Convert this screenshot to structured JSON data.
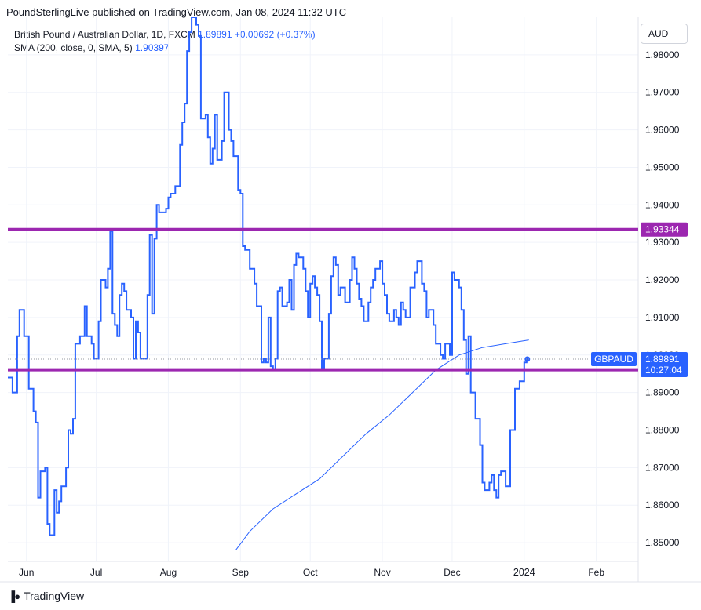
{
  "header": {
    "publisher": "PoundSterlingLive published on TradingView.com, Jan 08, 2024 11:32 UTC"
  },
  "legend": {
    "symbol": "British Pound / Australian Dollar, 1D, FXCM",
    "last_value": "1.89891",
    "change": "+0.00692 (+0.37%)",
    "sma_label": "SMA (200, close, 0, SMA, 5)",
    "sma_value": "1.90397"
  },
  "currency_button": "AUD",
  "footer": {
    "brand": "TradingView"
  },
  "colors": {
    "price_line": "#2962ff",
    "sma_line": "#2962ff",
    "level_line": "#9c27b0",
    "grid": "#f0f3fa",
    "axis_text": "#131722"
  },
  "chart_data": {
    "type": "line",
    "ylim": [
      1.845,
      1.99
    ],
    "y_ticks": [
      "1.85000",
      "1.86000",
      "1.87000",
      "1.88000",
      "1.89000",
      "1.90000",
      "1.91000",
      "1.92000",
      "1.93000",
      "1.94000",
      "1.95000",
      "1.96000",
      "1.97000",
      "1.98000"
    ],
    "x_ticks": [
      {
        "label": "Jun",
        "date": "2023-06-01"
      },
      {
        "label": "Jul",
        "date": "2023-07-01"
      },
      {
        "label": "Aug",
        "date": "2023-08-01"
      },
      {
        "label": "Sep",
        "date": "2023-09-01"
      },
      {
        "label": "Oct",
        "date": "2023-10-01"
      },
      {
        "label": "Nov",
        "date": "2023-11-01"
      },
      {
        "label": "Dec",
        "date": "2023-12-01"
      },
      {
        "label": "2024",
        "date": "2024-01-01"
      },
      {
        "label": "Feb",
        "date": "2024-02-01"
      }
    ],
    "x_range": [
      "2023-05-24",
      "2024-02-19"
    ],
    "series": [
      {
        "style": "step",
        "points": [
          [
            "2023-05-24",
            1.894
          ],
          [
            "2023-05-26",
            1.89
          ],
          [
            "2023-05-28",
            1.905
          ],
          [
            "2023-05-29",
            1.912
          ],
          [
            "2023-05-31",
            1.905
          ],
          [
            "2023-06-02",
            1.891
          ],
          [
            "2023-06-04",
            1.885
          ],
          [
            "2023-06-05",
            1.882
          ],
          [
            "2023-06-06",
            1.862
          ],
          [
            "2023-06-07",
            1.869
          ],
          [
            "2023-06-09",
            1.87
          ],
          [
            "2023-06-10",
            1.855
          ],
          [
            "2023-06-11",
            1.852
          ],
          [
            "2023-06-13",
            1.864
          ],
          [
            "2023-06-14",
            1.858
          ],
          [
            "2023-06-15",
            1.861
          ],
          [
            "2023-06-16",
            1.865
          ],
          [
            "2023-06-18",
            1.87
          ],
          [
            "2023-06-19",
            1.88
          ],
          [
            "2023-06-20",
            1.879
          ],
          [
            "2023-06-21",
            1.883
          ],
          [
            "2023-06-22",
            1.903
          ],
          [
            "2023-06-24",
            1.905
          ],
          [
            "2023-06-26",
            1.913
          ],
          [
            "2023-06-27",
            1.905
          ],
          [
            "2023-06-29",
            1.903
          ],
          [
            "2023-06-30",
            1.899
          ],
          [
            "2023-07-02",
            1.909
          ],
          [
            "2023-07-03",
            1.92
          ],
          [
            "2023-07-05",
            1.918
          ],
          [
            "2023-07-06",
            1.923
          ],
          [
            "2023-07-07",
            1.933
          ],
          [
            "2023-07-08",
            1.911
          ],
          [
            "2023-07-09",
            1.908
          ],
          [
            "2023-07-10",
            1.905
          ],
          [
            "2023-07-11",
            1.916
          ],
          [
            "2023-07-12",
            1.919
          ],
          [
            "2023-07-13",
            1.917
          ],
          [
            "2023-07-14",
            1.912
          ],
          [
            "2023-07-16",
            1.91
          ],
          [
            "2023-07-17",
            1.899
          ],
          [
            "2023-07-18",
            1.909
          ],
          [
            "2023-07-19",
            1.906
          ],
          [
            "2023-07-20",
            1.899
          ],
          [
            "2023-07-23",
            1.916
          ],
          [
            "2023-07-24",
            1.932
          ],
          [
            "2023-07-25",
            1.911
          ],
          [
            "2023-07-26",
            1.931
          ],
          [
            "2023-07-27",
            1.94
          ],
          [
            "2023-07-28",
            1.938
          ],
          [
            "2023-07-31",
            1.939
          ],
          [
            "2023-08-01",
            1.942
          ],
          [
            "2023-08-02",
            1.943
          ],
          [
            "2023-08-04",
            1.945
          ],
          [
            "2023-08-06",
            1.956
          ],
          [
            "2023-08-07",
            1.962
          ],
          [
            "2023-08-08",
            1.967
          ],
          [
            "2023-08-09",
            1.981
          ],
          [
            "2023-08-10",
            1.986
          ],
          [
            "2023-08-11",
            1.99
          ],
          [
            "2023-08-13",
            1.988
          ],
          [
            "2023-08-14",
            1.985
          ],
          [
            "2023-08-15",
            1.963
          ],
          [
            "2023-08-17",
            1.964
          ],
          [
            "2023-08-18",
            1.958
          ],
          [
            "2023-08-19",
            1.951
          ],
          [
            "2023-08-20",
            1.955
          ],
          [
            "2023-08-21",
            1.964
          ],
          [
            "2023-08-22",
            1.952
          ],
          [
            "2023-08-24",
            1.957
          ],
          [
            "2023-08-25",
            1.97
          ],
          [
            "2023-08-27",
            1.96
          ],
          [
            "2023-08-28",
            1.957
          ],
          [
            "2023-08-29",
            1.953
          ],
          [
            "2023-08-31",
            1.944
          ],
          [
            "2023-09-01",
            1.943
          ],
          [
            "2023-09-02",
            1.929
          ],
          [
            "2023-09-03",
            1.928
          ],
          [
            "2023-09-05",
            1.923
          ],
          [
            "2023-09-07",
            1.919
          ],
          [
            "2023-09-08",
            1.913
          ],
          [
            "2023-09-10",
            1.898
          ],
          [
            "2023-09-11",
            1.899
          ],
          [
            "2023-09-12",
            1.898
          ],
          [
            "2023-09-13",
            1.91
          ],
          [
            "2023-09-14",
            1.897
          ],
          [
            "2023-09-15",
            1.896
          ],
          [
            "2023-09-16",
            1.899
          ],
          [
            "2023-09-17",
            1.917
          ],
          [
            "2023-09-18",
            1.918
          ],
          [
            "2023-09-19",
            1.913
          ],
          [
            "2023-09-21",
            1.914
          ],
          [
            "2023-09-22",
            1.92
          ],
          [
            "2023-09-23",
            1.912
          ],
          [
            "2023-09-24",
            1.924
          ],
          [
            "2023-09-25",
            1.927
          ],
          [
            "2023-09-26",
            1.926
          ],
          [
            "2023-09-28",
            1.923
          ],
          [
            "2023-09-29",
            1.917
          ],
          [
            "2023-09-30",
            1.91
          ],
          [
            "2023-10-01",
            1.919
          ],
          [
            "2023-10-02",
            1.921
          ],
          [
            "2023-10-03",
            1.918
          ],
          [
            "2023-10-04",
            1.916
          ],
          [
            "2023-10-05",
            1.909
          ],
          [
            "2023-10-06",
            1.896
          ],
          [
            "2023-10-07",
            1.899
          ],
          [
            "2023-10-09",
            1.911
          ],
          [
            "2023-10-10",
            1.921
          ],
          [
            "2023-10-11",
            1.926
          ],
          [
            "2023-10-12",
            1.924
          ],
          [
            "2023-10-13",
            1.916
          ],
          [
            "2023-10-14",
            1.918
          ],
          [
            "2023-10-16",
            1.914
          ],
          [
            "2023-10-18",
            1.92
          ],
          [
            "2023-10-19",
            1.926
          ],
          [
            "2023-10-20",
            1.923
          ],
          [
            "2023-10-21",
            1.919
          ],
          [
            "2023-10-22",
            1.915
          ],
          [
            "2023-10-23",
            1.913
          ],
          [
            "2023-10-24",
            1.909
          ],
          [
            "2023-10-26",
            1.914
          ],
          [
            "2023-10-27",
            1.918
          ],
          [
            "2023-10-28",
            1.92
          ],
          [
            "2023-10-29",
            1.923
          ],
          [
            "2023-10-31",
            1.925
          ],
          [
            "2023-11-01",
            1.919
          ],
          [
            "2023-11-02",
            1.916
          ],
          [
            "2023-11-03",
            1.911
          ],
          [
            "2023-11-04",
            1.909
          ],
          [
            "2023-11-06",
            1.912
          ],
          [
            "2023-11-07",
            1.91
          ],
          [
            "2023-11-08",
            1.908
          ],
          [
            "2023-11-09",
            1.914
          ],
          [
            "2023-11-10",
            1.912
          ],
          [
            "2023-11-11",
            1.91
          ],
          [
            "2023-11-13",
            1.918
          ],
          [
            "2023-11-15",
            1.922
          ],
          [
            "2023-11-16",
            1.925
          ],
          [
            "2023-11-18",
            1.919
          ],
          [
            "2023-11-19",
            1.917
          ],
          [
            "2023-11-20",
            1.91
          ],
          [
            "2023-11-21",
            1.912
          ],
          [
            "2023-11-23",
            1.908
          ],
          [
            "2023-11-24",
            1.903
          ],
          [
            "2023-11-26",
            1.9
          ],
          [
            "2023-11-27",
            1.899
          ],
          [
            "2023-11-28",
            1.903
          ],
          [
            "2023-11-30",
            1.9
          ],
          [
            "2023-12-01",
            1.922
          ],
          [
            "2023-12-02",
            1.92
          ],
          [
            "2023-12-04",
            1.918
          ],
          [
            "2023-12-05",
            1.912
          ],
          [
            "2023-12-06",
            1.904
          ],
          [
            "2023-12-07",
            1.895
          ],
          [
            "2023-12-08",
            1.905
          ],
          [
            "2023-12-09",
            1.89
          ],
          [
            "2023-12-11",
            1.883
          ],
          [
            "2023-12-13",
            1.876
          ],
          [
            "2023-12-14",
            1.866
          ],
          [
            "2023-12-15",
            1.864
          ],
          [
            "2023-12-17",
            1.866
          ],
          [
            "2023-12-18",
            1.868
          ],
          [
            "2023-12-19",
            1.864
          ],
          [
            "2023-12-20",
            1.862
          ],
          [
            "2023-12-21",
            1.868
          ],
          [
            "2023-12-22",
            1.869
          ],
          [
            "2023-12-24",
            1.865
          ],
          [
            "2023-12-26",
            1.88
          ],
          [
            "2023-12-28",
            1.891
          ],
          [
            "2023-12-30",
            1.893
          ],
          [
            "2024-01-01",
            1.898
          ],
          [
            "2024-01-02",
            1.8989
          ]
        ]
      },
      {
        "style": "line",
        "points": [
          [
            "2023-08-30",
            1.848
          ],
          [
            "2023-09-05",
            1.853
          ],
          [
            "2023-09-15",
            1.859
          ],
          [
            "2023-09-25",
            1.863
          ],
          [
            "2023-10-05",
            1.867
          ],
          [
            "2023-10-15",
            1.873
          ],
          [
            "2023-10-25",
            1.879
          ],
          [
            "2023-11-04",
            1.884
          ],
          [
            "2023-11-14",
            1.89
          ],
          [
            "2023-11-24",
            1.896
          ],
          [
            "2023-12-04",
            1.9
          ],
          [
            "2023-12-14",
            1.902
          ],
          [
            "2023-12-24",
            1.903
          ],
          [
            "2024-01-03",
            1.904
          ]
        ]
      }
    ],
    "levels": [
      {
        "value": 1.93344,
        "label": "1.93344"
      },
      {
        "value": 1.89607,
        "label": "1.89607"
      }
    ],
    "price_label": {
      "symbol": "GBPAUD",
      "value": "1.89891",
      "countdown": "10:27:04"
    },
    "grid": true
  }
}
